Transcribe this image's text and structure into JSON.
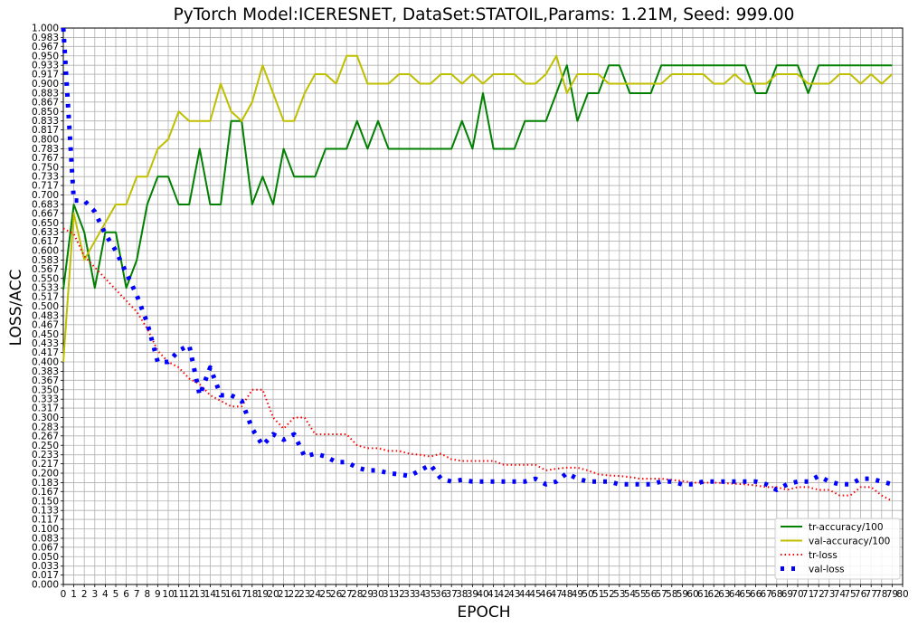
{
  "chart_data": {
    "type": "line",
    "title": "PyTorch Model:ICERESNET, DataSet:STATOIL,Params: 1.21M, Seed: 999.00",
    "xlabel": "EPOCH",
    "ylabel": "LOSS/ACC",
    "xlim": [
      0,
      80
    ],
    "ylim": [
      0,
      1
    ],
    "grid": true,
    "legend_position": "bottom-right",
    "x_ticks": [
      0,
      1,
      2,
      3,
      4,
      5,
      6,
      7,
      8,
      9,
      10,
      11,
      12,
      13,
      14,
      15,
      16,
      17,
      18,
      19,
      20,
      21,
      22,
      23,
      24,
      25,
      26,
      27,
      28,
      29,
      30,
      31,
      32,
      33,
      34,
      35,
      36,
      37,
      38,
      39,
      40,
      41,
      42,
      43,
      44,
      45,
      46,
      47,
      48,
      49,
      50,
      51,
      52,
      53,
      54,
      55,
      56,
      57,
      58,
      59,
      60,
      61,
      62,
      63,
      64,
      65,
      66,
      67,
      68,
      69,
      70,
      71,
      72,
      73,
      74,
      75,
      76,
      77,
      78,
      79,
      80
    ],
    "y_ticks": [
      "0.000",
      "0.017",
      "0.033",
      "0.050",
      "0.067",
      "0.083",
      "0.100",
      "0.117",
      "0.133",
      "0.150",
      "0.167",
      "0.183",
      "0.200",
      "0.217",
      "0.233",
      "0.250",
      "0.267",
      "0.283",
      "0.300",
      "0.317",
      "0.333",
      "0.350",
      "0.367",
      "0.383",
      "0.400",
      "0.417",
      "0.433",
      "0.450",
      "0.467",
      "0.483",
      "0.500",
      "0.517",
      "0.533",
      "0.550",
      "0.567",
      "0.583",
      "0.600",
      "0.617",
      "0.633",
      "0.650",
      "0.667",
      "0.683",
      "0.700",
      "0.717",
      "0.733",
      "0.750",
      "0.767",
      "0.783",
      "0.800",
      "0.817",
      "0.833",
      "0.850",
      "0.867",
      "0.883",
      "0.900",
      "0.917",
      "0.933",
      "0.950",
      "0.967",
      "0.983",
      "1.000"
    ],
    "series": [
      {
        "name": "tr-accuracy/100",
        "color": "#008000",
        "style": "solid",
        "x": [
          0,
          1,
          2,
          3,
          4,
          5,
          6,
          7,
          8,
          9,
          10,
          11,
          12,
          13,
          14,
          15,
          16,
          17,
          18,
          19,
          20,
          21,
          22,
          23,
          24,
          25,
          26,
          27,
          28,
          29,
          30,
          31,
          32,
          33,
          34,
          35,
          36,
          37,
          38,
          39,
          40,
          41,
          42,
          43,
          44,
          45,
          46,
          47,
          48,
          49,
          50,
          51,
          52,
          53,
          54,
          55,
          56,
          57,
          58,
          59,
          60,
          61,
          62,
          63,
          64,
          65,
          66,
          67,
          68,
          69,
          70,
          71,
          72,
          73,
          74,
          75,
          76,
          77,
          78,
          79
        ],
        "values": [
          0.53,
          0.683,
          0.633,
          0.533,
          0.633,
          0.633,
          0.533,
          0.583,
          0.683,
          0.733,
          0.733,
          0.683,
          0.683,
          0.783,
          0.683,
          0.683,
          0.833,
          0.833,
          0.683,
          0.733,
          0.683,
          0.783,
          0.733,
          0.733,
          0.733,
          0.783,
          0.783,
          0.783,
          0.833,
          0.783,
          0.833,
          0.783,
          0.783,
          0.783,
          0.783,
          0.783,
          0.783,
          0.783,
          0.833,
          0.783,
          0.883,
          0.783,
          0.783,
          0.783,
          0.833,
          0.833,
          0.833,
          0.883,
          0.933,
          0.833,
          0.883,
          0.883,
          0.933,
          0.933,
          0.883,
          0.883,
          0.883,
          0.933,
          0.933,
          0.933,
          0.933,
          0.933,
          0.933,
          0.933,
          0.933,
          0.933,
          0.883,
          0.883,
          0.933,
          0.933,
          0.933,
          0.883,
          0.933,
          0.933,
          0.933,
          0.933,
          0.933,
          0.933,
          0.933,
          0.933
        ]
      },
      {
        "name": "val-accuracy/100",
        "color": "#bfbf00",
        "style": "solid",
        "x": [
          0,
          1,
          2,
          3,
          4,
          5,
          6,
          7,
          8,
          9,
          10,
          11,
          12,
          13,
          14,
          15,
          16,
          17,
          18,
          19,
          20,
          21,
          22,
          23,
          24,
          25,
          26,
          27,
          28,
          29,
          30,
          31,
          32,
          33,
          34,
          35,
          36,
          37,
          38,
          39,
          40,
          41,
          42,
          43,
          44,
          45,
          46,
          47,
          48,
          49,
          50,
          51,
          52,
          53,
          54,
          55,
          56,
          57,
          58,
          59,
          60,
          61,
          62,
          63,
          64,
          65,
          66,
          67,
          68,
          69,
          70,
          71,
          72,
          73,
          74,
          75,
          76,
          77,
          78,
          79
        ],
        "values": [
          0.4,
          0.667,
          0.583,
          0.617,
          0.65,
          0.683,
          0.683,
          0.733,
          0.733,
          0.783,
          0.8,
          0.85,
          0.833,
          0.833,
          0.833,
          0.9,
          0.85,
          0.833,
          0.867,
          0.933,
          0.883,
          0.833,
          0.833,
          0.883,
          0.917,
          0.917,
          0.9,
          0.95,
          0.95,
          0.9,
          0.9,
          0.9,
          0.917,
          0.917,
          0.9,
          0.9,
          0.917,
          0.917,
          0.9,
          0.917,
          0.9,
          0.917,
          0.917,
          0.917,
          0.9,
          0.9,
          0.917,
          0.95,
          0.883,
          0.917,
          0.917,
          0.917,
          0.9,
          0.9,
          0.9,
          0.9,
          0.9,
          0.9,
          0.917,
          0.917,
          0.917,
          0.917,
          0.9,
          0.9,
          0.917,
          0.9,
          0.9,
          0.9,
          0.917,
          0.917,
          0.917,
          0.9,
          0.9,
          0.9,
          0.917,
          0.917,
          0.9,
          0.917,
          0.9,
          0.917
        ]
      },
      {
        "name": "tr-loss",
        "color": "#ff0000",
        "style": "dotted",
        "x": [
          0,
          1,
          2,
          3,
          4,
          5,
          6,
          7,
          8,
          9,
          10,
          11,
          12,
          13,
          14,
          15,
          16,
          17,
          18,
          19,
          20,
          21,
          22,
          23,
          24,
          25,
          26,
          27,
          28,
          29,
          30,
          31,
          32,
          33,
          34,
          35,
          36,
          37,
          38,
          39,
          40,
          41,
          42,
          43,
          44,
          45,
          46,
          47,
          48,
          49,
          50,
          51,
          52,
          53,
          54,
          55,
          56,
          57,
          58,
          59,
          60,
          61,
          62,
          63,
          64,
          65,
          66,
          67,
          68,
          69,
          70,
          71,
          72,
          73,
          74,
          75,
          76,
          77,
          78,
          79
        ],
        "values": [
          0.64,
          0.63,
          0.59,
          0.57,
          0.55,
          0.53,
          0.51,
          0.49,
          0.46,
          0.42,
          0.4,
          0.39,
          0.37,
          0.36,
          0.34,
          0.33,
          0.32,
          0.32,
          0.35,
          0.35,
          0.3,
          0.28,
          0.3,
          0.3,
          0.27,
          0.27,
          0.27,
          0.27,
          0.25,
          0.245,
          0.245,
          0.24,
          0.24,
          0.235,
          0.233,
          0.23,
          0.235,
          0.225,
          0.222,
          0.222,
          0.222,
          0.222,
          0.215,
          0.215,
          0.215,
          0.215,
          0.205,
          0.208,
          0.21,
          0.21,
          0.205,
          0.198,
          0.196,
          0.195,
          0.193,
          0.19,
          0.19,
          0.19,
          0.188,
          0.186,
          0.183,
          0.183,
          0.183,
          0.182,
          0.181,
          0.18,
          0.178,
          0.175,
          0.175,
          0.17,
          0.175,
          0.175,
          0.17,
          0.17,
          0.16,
          0.16,
          0.175,
          0.175,
          0.16,
          0.15
        ]
      },
      {
        "name": "val-loss",
        "color": "#0000ff",
        "style": "dashed",
        "x": [
          0,
          1,
          2,
          3,
          4,
          5,
          6,
          7,
          8,
          9,
          10,
          11,
          12,
          13,
          14,
          15,
          16,
          17,
          18,
          19,
          20,
          21,
          22,
          23,
          24,
          25,
          26,
          27,
          28,
          29,
          30,
          31,
          32,
          33,
          34,
          35,
          36,
          37,
          38,
          39,
          40,
          41,
          42,
          43,
          44,
          45,
          46,
          47,
          48,
          49,
          50,
          51,
          52,
          53,
          54,
          55,
          56,
          57,
          58,
          59,
          60,
          61,
          62,
          63,
          64,
          65,
          66,
          67,
          68,
          69,
          70,
          71,
          72,
          73,
          74,
          75,
          76,
          77,
          78,
          79
        ],
        "values": [
          1.0,
          0.69,
          0.69,
          0.67,
          0.63,
          0.6,
          0.56,
          0.52,
          0.47,
          0.4,
          0.4,
          0.42,
          0.43,
          0.34,
          0.39,
          0.34,
          0.34,
          0.33,
          0.28,
          0.25,
          0.27,
          0.26,
          0.27,
          0.23,
          0.235,
          0.23,
          0.22,
          0.22,
          0.21,
          0.205,
          0.205,
          0.2,
          0.198,
          0.195,
          0.205,
          0.215,
          0.19,
          0.185,
          0.188,
          0.185,
          0.185,
          0.185,
          0.185,
          0.185,
          0.185,
          0.19,
          0.18,
          0.185,
          0.2,
          0.19,
          0.185,
          0.185,
          0.185,
          0.18,
          0.18,
          0.18,
          0.18,
          0.185,
          0.185,
          0.18,
          0.18,
          0.185,
          0.185,
          0.185,
          0.185,
          0.185,
          0.185,
          0.18,
          0.17,
          0.18,
          0.185,
          0.185,
          0.195,
          0.185,
          0.18,
          0.18,
          0.19,
          0.19,
          0.185,
          0.18
        ]
      }
    ]
  }
}
